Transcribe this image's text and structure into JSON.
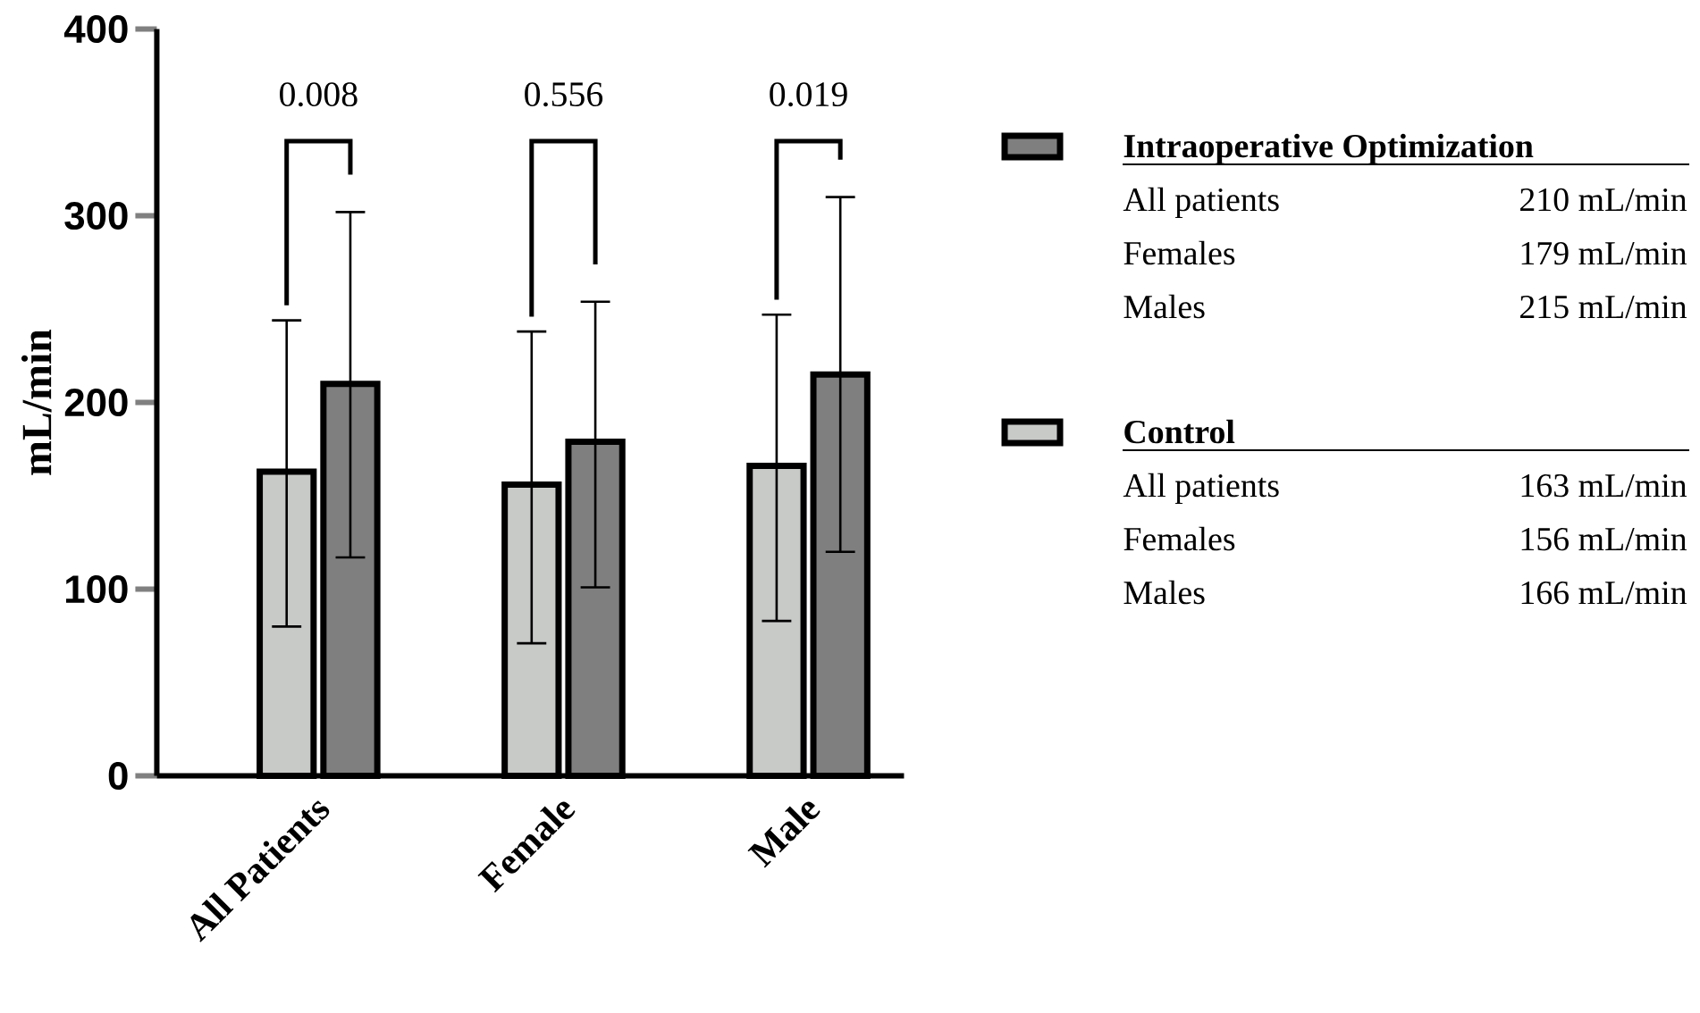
{
  "chart_data": {
    "type": "bar",
    "ylabel": "mL/min",
    "categories": [
      "All Patients",
      "Female",
      "Male"
    ],
    "series": [
      {
        "name": "Control",
        "color": "#c8cac8",
        "values": [
          163,
          156,
          166
        ],
        "errors": [
          [
            80,
            244
          ],
          [
            71,
            238
          ],
          [
            83,
            247
          ]
        ]
      },
      {
        "name": "Intraoperative Optimization",
        "color": "#7f7f7f",
        "values": [
          210,
          179,
          215
        ],
        "errors": [
          [
            117,
            302
          ],
          [
            101,
            254
          ],
          [
            120,
            310
          ]
        ]
      }
    ],
    "ylim": [
      0,
      400
    ],
    "yticks": [
      0,
      100,
      200,
      300,
      400
    ],
    "legend": "right",
    "annotations": [
      "0.008",
      "0.556",
      "0.019",
      "All patients",
      "210 mL/min",
      "Females",
      "179 mL/min",
      "Males",
      "215 mL/min",
      "All patients",
      "163 mL/min",
      "Females",
      "156 mL/min",
      "Males",
      "166 mL/min"
    ]
  }
}
